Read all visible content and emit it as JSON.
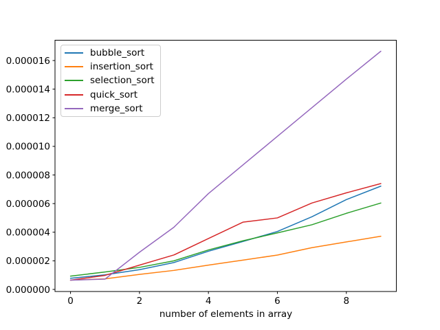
{
  "figure": {
    "background": "#ffffff",
    "axis_color": "#000000"
  },
  "chart_data": {
    "type": "line",
    "title": "",
    "xlabel": "number of elements in array",
    "ylabel": "",
    "grid": false,
    "legend_position": "upper left",
    "x": [
      0,
      1,
      2,
      3,
      4,
      5,
      6,
      7,
      8,
      9
    ],
    "series": [
      {
        "name": "bubble_sort",
        "color": "#1f77b4",
        "values": [
          7.8e-07,
          1.02e-06,
          1.38e-06,
          1.88e-06,
          2.67e-06,
          3.35e-06,
          4.05e-06,
          5.08e-06,
          6.28e-06,
          7.22e-06
        ]
      },
      {
        "name": "insertion_sort",
        "color": "#ff7f0e",
        "values": [
          6.5e-07,
          7.4e-07,
          1.05e-06,
          1.33e-06,
          1.7e-06,
          2.05e-06,
          2.4e-06,
          2.92e-06,
          3.32e-06,
          3.72e-06
        ]
      },
      {
        "name": "selection_sort",
        "color": "#2ca02c",
        "values": [
          9.3e-07,
          1.22e-06,
          1.54e-06,
          2e-06,
          2.76e-06,
          3.4e-06,
          3.95e-06,
          4.52e-06,
          5.32e-06,
          6.04e-06
        ]
      },
      {
        "name": "quick_sort",
        "color": "#d62728",
        "values": [
          6.5e-07,
          9.8e-07,
          1.7e-06,
          2.41e-06,
          3.56e-06,
          4.7e-06,
          5e-06,
          6.04e-06,
          6.75e-06,
          7.4e-06
        ]
      },
      {
        "name": "merge_sort",
        "color": "#9467bd",
        "values": [
          6.5e-07,
          7.2e-07,
          2.6e-06,
          4.35e-06,
          6.7e-06,
          8.7e-06,
          1.07e-05,
          1.27e-05,
          1.47e-05,
          1.665e-05
        ]
      }
    ],
    "xlim": [
      -0.45,
      9.45
    ],
    "ylim": [
      -1.45e-07,
      1.742e-05
    ],
    "xticks": [
      {
        "v": 0,
        "label": "0"
      },
      {
        "v": 2,
        "label": "2"
      },
      {
        "v": 4,
        "label": "4"
      },
      {
        "v": 6,
        "label": "6"
      },
      {
        "v": 8,
        "label": "8"
      }
    ],
    "yticks": [
      {
        "v": 0,
        "label": "0.000000"
      },
      {
        "v": 2e-06,
        "label": "0.000002"
      },
      {
        "v": 4e-06,
        "label": "0.000004"
      },
      {
        "v": 6e-06,
        "label": "0.000006"
      },
      {
        "v": 8e-06,
        "label": "0.000008"
      },
      {
        "v": 1e-05,
        "label": "0.000010"
      },
      {
        "v": 1.2e-05,
        "label": "0.000012"
      },
      {
        "v": 1.4e-05,
        "label": "0.000014"
      },
      {
        "v": 1.6e-05,
        "label": "0.000016"
      }
    ]
  }
}
